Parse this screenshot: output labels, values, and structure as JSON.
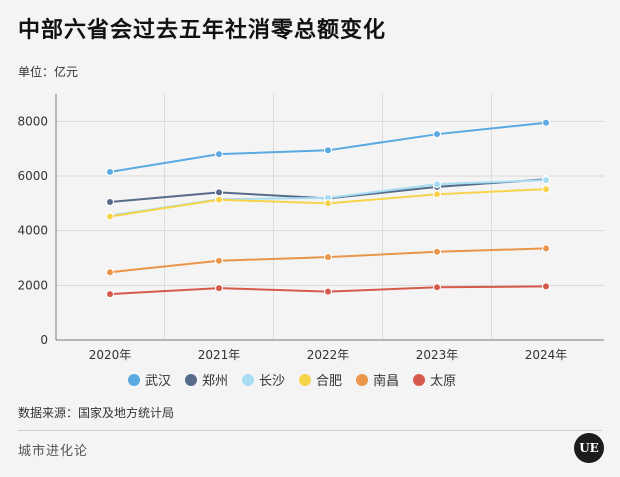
{
  "title": "中部六省会过去五年社消零总额变化",
  "unit": "单位：亿元",
  "source": "数据来源：国家及地方统计局",
  "brand": "城市进化论",
  "logo": "UE",
  "chart_data": {
    "type": "line",
    "x": [
      "2020年",
      "2021年",
      "2022年",
      "2023年",
      "2024年"
    ],
    "ylim": [
      0,
      9000
    ],
    "yticks": [
      0,
      2000,
      4000,
      6000,
      8000
    ],
    "grid": true,
    "legend_position": "bottom",
    "series": [
      {
        "name": "武汉",
        "color": "#5aa9e0",
        "values": [
          6150,
          6800,
          6940,
          7530,
          7950
        ]
      },
      {
        "name": "郑州",
        "color": "#566b8a",
        "values": [
          5050,
          5400,
          5180,
          5600,
          5880
        ]
      },
      {
        "name": "长沙",
        "color": "#a8dcf2",
        "values": [
          4550,
          5150,
          5200,
          5700,
          5850
        ]
      },
      {
        "name": "合肥",
        "color": "#f7d34a",
        "values": [
          4520,
          5130,
          5000,
          5330,
          5520
        ]
      },
      {
        "name": "南昌",
        "color": "#ea9549",
        "values": [
          2480,
          2900,
          3030,
          3230,
          3350
        ]
      },
      {
        "name": "太原",
        "color": "#d55a4b",
        "values": [
          1680,
          1900,
          1770,
          1930,
          1960
        ]
      }
    ]
  }
}
